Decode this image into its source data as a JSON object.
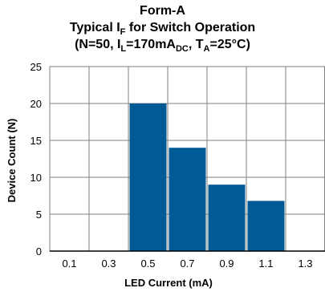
{
  "title": {
    "line1": "Form-A",
    "line2_pre": "Typical I",
    "line2_sub": "F",
    "line2_post": " for Switch Operation",
    "line3_a": "(N=50, I",
    "line3_sub1": "L",
    "line3_b": "=170mA",
    "line3_sub2": "DC",
    "line3_c": ",  T",
    "line3_sub3": "A",
    "line3_d": "=25°C)"
  },
  "chart_data": {
    "type": "bar",
    "categories": [
      "0.1",
      "0.3",
      "0.5",
      "0.7",
      "0.9",
      "1.1",
      "1.3"
    ],
    "values": [
      0,
      0,
      20,
      14,
      9,
      6.8,
      0
    ],
    "xlabel": "LED Current (mA)",
    "ylabel": "Device Count (N)",
    "ylim": [
      0,
      25
    ],
    "yticks": [
      "0",
      "5",
      "10",
      "15",
      "20",
      "25"
    ],
    "grid": true,
    "bar_color": "#005a96",
    "grid_color": "#7f7f7f",
    "legend": "none"
  }
}
